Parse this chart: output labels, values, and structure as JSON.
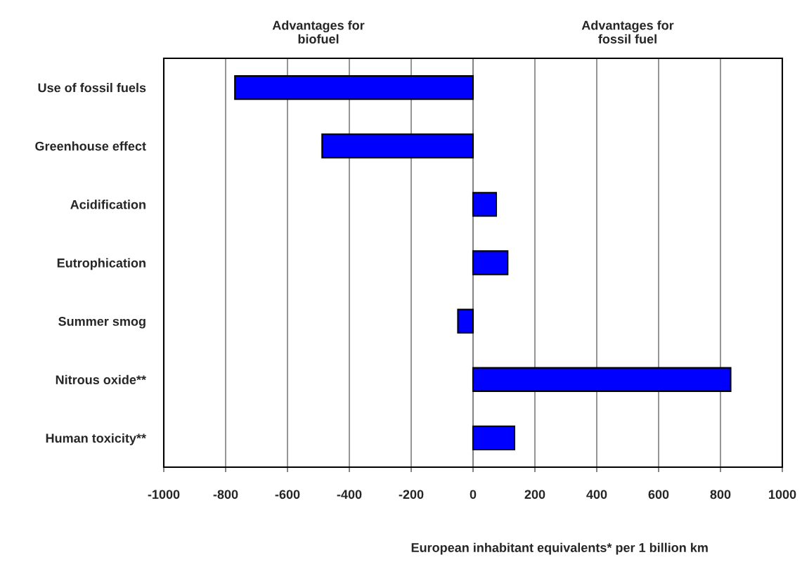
{
  "chart_data": {
    "type": "bar",
    "orientation": "horizontal",
    "xlabel": "European inhabitant equivalents* per 1 billion km",
    "annotations": [
      "Advantages for\nbiofuel",
      "Advantages for\nfossil fuel"
    ],
    "categories": [
      "Use of fossil fuels",
      "Greenhouse effect",
      "Acidification",
      "Eutrophication",
      "Summer smog",
      "Nitrous oxide**",
      "Human toxicity**"
    ],
    "values": [
      -770,
      -488,
      75,
      112,
      -49,
      833,
      134
    ],
    "color": "#0000ff",
    "xlim": [
      -1000,
      1000
    ],
    "xticks": [
      -1000,
      -800,
      -600,
      -400,
      -200,
      0,
      200,
      400,
      600,
      800,
      1000
    ],
    "grid": "x",
    "legend": false
  }
}
